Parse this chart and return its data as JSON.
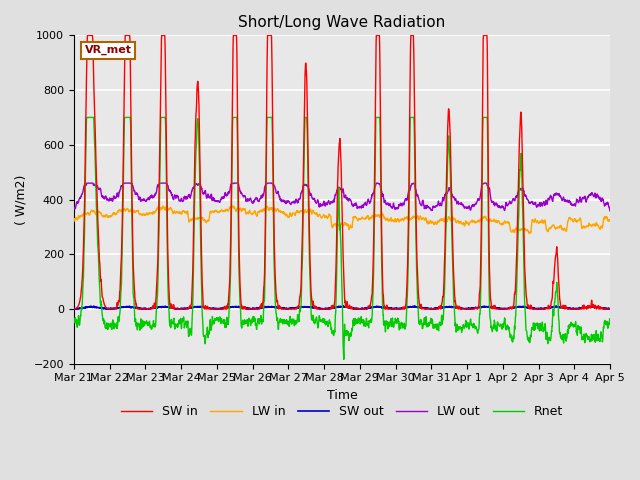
{
  "title": "Short/Long Wave Radiation",
  "xlabel": "Time",
  "ylabel": "( W/m2)",
  "ylim": [
    -200,
    1000
  ],
  "yticks": [
    -200,
    0,
    200,
    400,
    600,
    800,
    1000
  ],
  "xlim": [
    0,
    15
  ],
  "xtick_labels": [
    "Mar 21",
    "Mar 22",
    "Mar 23",
    "Mar 24",
    "Mar 25",
    "Mar 26",
    "Mar 27",
    "Mar 28",
    "Mar 29",
    "Mar 30",
    "Mar 31",
    "Apr 1",
    "Apr 2",
    "Apr 3",
    "Apr 4",
    "Apr 5"
  ],
  "xtick_positions": [
    0,
    1,
    2,
    3,
    4,
    5,
    6,
    7,
    8,
    9,
    10,
    11,
    12,
    13,
    14,
    15
  ],
  "station_label": "VR_met",
  "background_color": "#e0e0e0",
  "axes_bg_color": "#e8e8e8",
  "grid_color": "white",
  "lines": {
    "SW_in": {
      "color": "#ff0000",
      "linewidth": 1.0,
      "label": "SW in"
    },
    "LW_in": {
      "color": "#ffa500",
      "linewidth": 1.0,
      "label": "LW in"
    },
    "SW_out": {
      "color": "#0000cc",
      "linewidth": 1.2,
      "label": "SW out"
    },
    "LW_out": {
      "color": "#9900cc",
      "linewidth": 1.0,
      "label": "LW out"
    },
    "Rnet": {
      "color": "#00cc00",
      "linewidth": 1.0,
      "label": "Rnet"
    }
  },
  "title_fontsize": 11,
  "label_fontsize": 9,
  "tick_fontsize": 8
}
